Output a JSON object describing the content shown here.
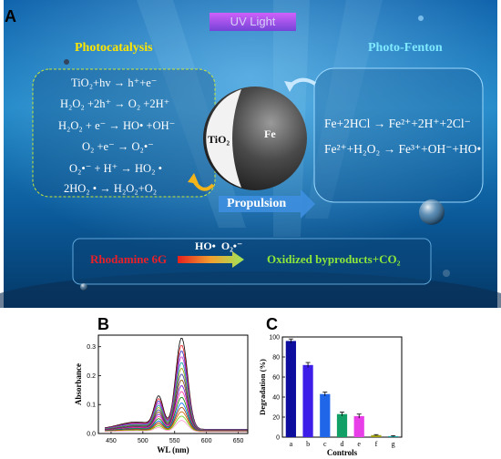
{
  "panel_a": {
    "letter": "A",
    "uv_label": "UV Light",
    "photocatalysis": {
      "title": "Photocatalysis",
      "equations": [
        "TiO₂+hv → h⁺+e⁻",
        "H₂O₂ +2h⁺ → O₂ +2H⁺",
        "H₂O₂ + e⁻ → HO• +OH⁻",
        "O₂ +e⁻ → O₂•⁻",
        "O₂•⁻ + H⁺ → HO₂ •",
        "2HO₂ • → H₂O₂+O₂"
      ]
    },
    "photo_fenton": {
      "title": "Photo-Fenton",
      "equations": [
        "Fe+2HCl → Fe²⁺+2H⁺+2Cl⁻",
        "Fe²⁺+H₂O₂ → Fe³⁺+OH⁻+HO•"
      ]
    },
    "motor": {
      "tio2_label": "TiO₂",
      "fe_label": "Fe"
    },
    "propulsion_label": "Propulsion",
    "degradation": {
      "reactant": "Rhodamine 6G",
      "radicals": "HO•  O₂•⁻",
      "products": "Oxidized byproducts+CO₂"
    },
    "colors": {
      "photocatalysis_title": "#ffe600",
      "photo_fenton_title": "#7fe9ff",
      "reactant": "#e8202a",
      "products": "#8ee63a"
    }
  },
  "panel_b": {
    "letter": "B",
    "chart_data": {
      "type": "line",
      "xlabel": "WL (nm)",
      "ylabel": "Absorbance",
      "xlim": [
        430,
        665
      ],
      "ylim": [
        0,
        0.34
      ],
      "xticks": [
        450,
        500,
        550,
        600,
        650
      ],
      "yticks": [
        0.0,
        0.1,
        0.2,
        0.3
      ],
      "xtick_labels": [
        "450",
        "500",
        "550",
        "600",
        "650"
      ],
      "ytick_labels": [
        "0.0",
        "0.1",
        "0.2",
        "0.3"
      ],
      "peak_wavelength": 561,
      "shoulder_wavelength": 525,
      "series_peaks": [
        0.325,
        0.3,
        0.28,
        0.26,
        0.24,
        0.22,
        0.2,
        0.18,
        0.16,
        0.14,
        0.12,
        0.1,
        0.085,
        0.07,
        0.055,
        0.04
      ],
      "series_colors": [
        "#000000",
        "#e41a1c",
        "#3333cc",
        "#cc33cc",
        "#00a0a0",
        "#999900",
        "#333399",
        "#884400",
        "#6600cc",
        "#ff3399",
        "#008800",
        "#0066ff",
        "#993300",
        "#cc6600",
        "#66cc00",
        "#ff99cc"
      ]
    }
  },
  "panel_c": {
    "letter": "C",
    "chart_data": {
      "type": "bar",
      "categories": [
        "a",
        "b",
        "c",
        "d",
        "e",
        "f",
        "g"
      ],
      "values": [
        96,
        72,
        43,
        23,
        21,
        2,
        1
      ],
      "errors": [
        2,
        2.5,
        2,
        2,
        2,
        0.5,
        0.5
      ],
      "xlabel": "Controls",
      "ylabel": "Degradation (%)",
      "ylim": [
        0,
        100
      ],
      "yticks": [
        0,
        20,
        40,
        60,
        80,
        100
      ],
      "ytick_labels": [
        "0",
        "20",
        "40",
        "60",
        "80",
        "100"
      ],
      "colors": [
        "#0d0d9e",
        "#3d1ee8",
        "#1f66e8",
        "#13a066",
        "#e83ee8",
        "#9e9e12",
        "#18a0a0"
      ]
    }
  }
}
